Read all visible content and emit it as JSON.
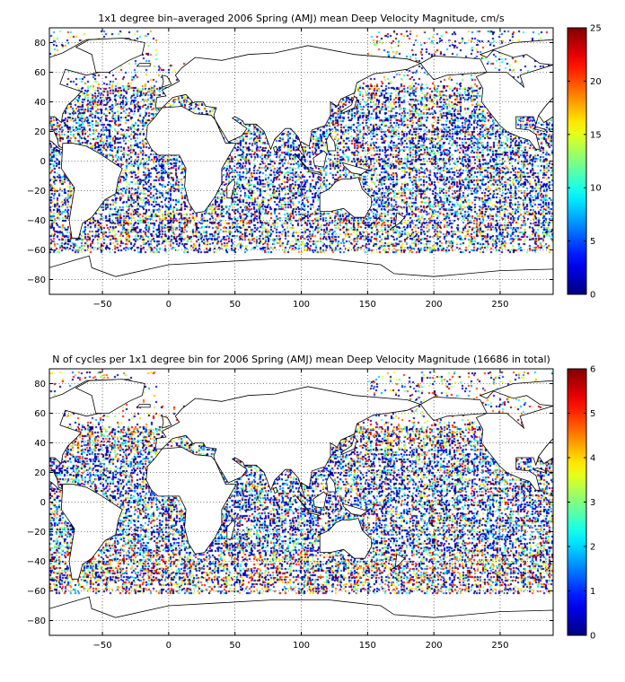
{
  "chart_data": [
    {
      "type": "heatmap",
      "title": "1x1 degree bin–averaged 2006 Spring (AMJ) mean Deep Velocity Magnitude, cm/s",
      "x_ticks": [
        -50,
        0,
        50,
        100,
        150,
        200,
        250
      ],
      "y_ticks": [
        80,
        60,
        40,
        20,
        0,
        -20,
        -40,
        -60,
        -80
      ],
      "xlim": [
        -90,
        290
      ],
      "ylim": [
        -90,
        90
      ],
      "grid": true,
      "colorbar": {
        "min": 0,
        "max": 25,
        "ticks": [
          0,
          5,
          10,
          15,
          20,
          25
        ],
        "colormap": "jet"
      },
      "density": 0.55,
      "high_value_bias": 0.15
    },
    {
      "type": "heatmap",
      "title": "N of cycles per 1x1 degree bin for 2006 Spring (AMJ) mean Deep Velocity Magnitude (16686 in total)",
      "x_ticks": [
        -50,
        0,
        50,
        100,
        150,
        200,
        250
      ],
      "y_ticks": [
        80,
        60,
        40,
        20,
        0,
        -20,
        -40,
        -60,
        -80
      ],
      "xlim": [
        -90,
        290
      ],
      "ylim": [
        -90,
        90
      ],
      "grid": true,
      "colorbar": {
        "min": 0,
        "max": 6,
        "ticks": [
          0,
          1,
          2,
          3,
          4,
          5,
          6
        ],
        "colormap": "jet"
      },
      "density": 0.6,
      "high_value_bias": 0.3
    }
  ],
  "colors": {
    "frame": "#000000",
    "grid": "#000000",
    "land": "#ffffff",
    "coast": "#000000"
  }
}
